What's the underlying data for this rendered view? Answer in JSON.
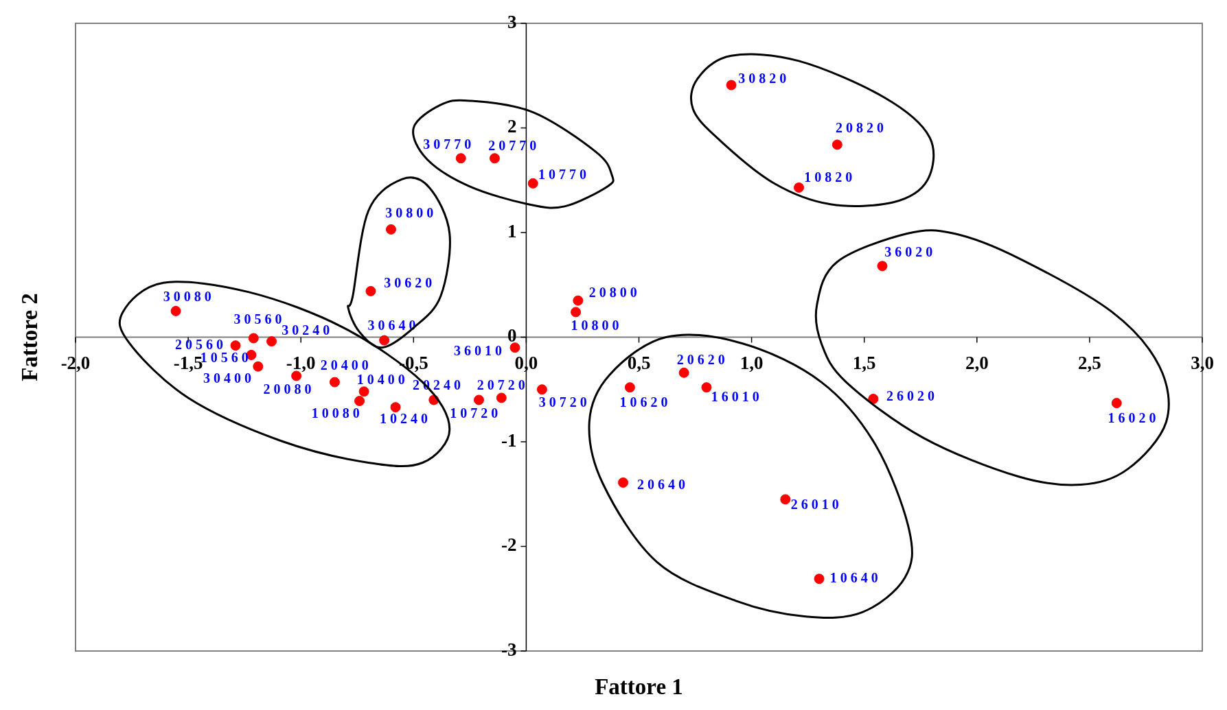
{
  "chart_data": {
    "type": "scatter",
    "xlabel": "Fattore 1",
    "ylabel": "Fattore 2",
    "color": "#ff0000",
    "marker": "circle",
    "x": [
      -1.555,
      -1.21,
      -1.13,
      -1.29,
      -1.22,
      -1.19,
      -1.02,
      -0.85,
      -0.72,
      -0.74,
      -0.58,
      -0.41,
      -0.21,
      -0.11,
      -0.05,
      0.07,
      -0.63,
      -0.69,
      -0.6,
      -0.29,
      -0.14,
      0.03,
      0.23,
      0.22,
      0.91,
      1.38,
      1.21,
      1.58,
      1.54,
      2.62,
      0.7,
      0.46,
      0.8,
      0.43,
      1.15,
      1.3
    ],
    "values": [
      0.25,
      -0.01,
      -0.04,
      -0.08,
      -0.17,
      -0.28,
      -0.37,
      -0.43,
      -0.52,
      -0.61,
      -0.67,
      -0.6,
      -0.6,
      -0.58,
      -0.1,
      -0.5,
      -0.03,
      0.44,
      1.03,
      1.71,
      1.71,
      1.47,
      0.35,
      0.24,
      2.41,
      1.84,
      1.43,
      0.68,
      -0.59,
      -0.63,
      -0.34,
      -0.48,
      -0.48,
      -1.39,
      -1.55,
      -2.31
    ],
    "xlim": [
      -2,
      3
    ],
    "ylim": [
      -3,
      3
    ],
    "xticks": [
      {
        "value": -2,
        "label": "-2,0"
      },
      {
        "value": -1.5,
        "label": "-1,5"
      },
      {
        "value": -1,
        "label": "-1,0"
      },
      {
        "value": -0.5,
        "label": "-0,5"
      },
      {
        "value": 0,
        "label": "0,0"
      },
      {
        "value": 0.5,
        "label": "0,5"
      },
      {
        "value": 1,
        "label": "1,0"
      },
      {
        "value": 1.5,
        "label": "1,5"
      },
      {
        "value": 2,
        "label": "2,0"
      },
      {
        "value": 2.5,
        "label": "2,5"
      },
      {
        "value": 3,
        "label": "3,0"
      }
    ],
    "yticks": [
      -3,
      -2,
      -1,
      0,
      1,
      2,
      3
    ],
    "annotations": [
      {
        "text": "30080",
        "x": -1.555,
        "y": 0.25
      },
      {
        "text": "30560",
        "x": -1.21,
        "y": -0.01
      },
      {
        "text": "30240",
        "x": -1.13,
        "y": -0.04
      },
      {
        "text": "20560",
        "x": -1.29,
        "y": -0.08
      },
      {
        "text": "10560",
        "x": -1.22,
        "y": -0.17
      },
      {
        "text": "30400",
        "x": -1.19,
        "y": -0.28
      },
      {
        "text": "20080",
        "x": -1.02,
        "y": -0.37
      },
      {
        "text": "20400",
        "x": -0.85,
        "y": -0.43
      },
      {
        "text": "10400",
        "x": -0.72,
        "y": -0.52
      },
      {
        "text": "10080",
        "x": -0.74,
        "y": -0.61
      },
      {
        "text": "10240",
        "x": -0.58,
        "y": -0.67
      },
      {
        "text": "20240",
        "x": -0.41,
        "y": -0.6
      },
      {
        "text": "10720",
        "x": -0.21,
        "y": -0.6
      },
      {
        "text": "20720",
        "x": -0.11,
        "y": -0.58
      },
      {
        "text": "36010",
        "x": -0.05,
        "y": -0.1
      },
      {
        "text": "30720",
        "x": 0.07,
        "y": -0.5
      },
      {
        "text": "30640",
        "x": -0.63,
        "y": -0.03
      },
      {
        "text": "30620",
        "x": -0.69,
        "y": 0.44
      },
      {
        "text": "30800",
        "x": -0.6,
        "y": 1.03
      },
      {
        "text": "30770",
        "x": -0.29,
        "y": 1.71
      },
      {
        "text": "20770",
        "x": -0.14,
        "y": 1.71
      },
      {
        "text": "10770",
        "x": 0.03,
        "y": 1.47
      },
      {
        "text": "20800",
        "x": 0.23,
        "y": 0.35
      },
      {
        "text": "10800",
        "x": 0.22,
        "y": 0.24
      },
      {
        "text": "30820",
        "x": 0.91,
        "y": 2.41
      },
      {
        "text": "20820",
        "x": 1.38,
        "y": 1.84
      },
      {
        "text": "10820",
        "x": 1.21,
        "y": 1.43
      },
      {
        "text": "36020",
        "x": 1.58,
        "y": 0.68
      },
      {
        "text": "26020",
        "x": 1.54,
        "y": -0.59
      },
      {
        "text": "16020",
        "x": 2.62,
        "y": -0.63
      },
      {
        "text": "20620",
        "x": 0.7,
        "y": -0.34
      },
      {
        "text": "10620",
        "x": 0.46,
        "y": -0.48
      },
      {
        "text": "16010",
        "x": 0.8,
        "y": -0.48
      },
      {
        "text": "20640",
        "x": 0.43,
        "y": -1.39
      },
      {
        "text": "26010",
        "x": 1.15,
        "y": -1.55
      },
      {
        "text": "10640",
        "x": 1.3,
        "y": -2.31
      }
    ]
  }
}
